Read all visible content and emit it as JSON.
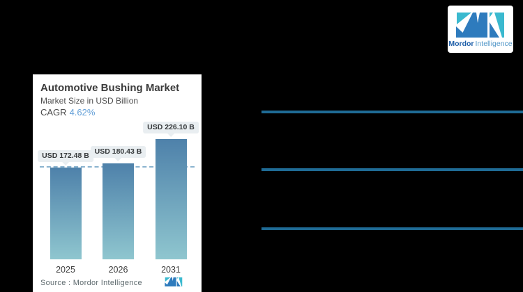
{
  "page": {
    "background": "#000000"
  },
  "brand_card": {
    "brand_bold": "Mordor",
    "brand_light": "Intelligence",
    "logo_teal": "#3ab9cf",
    "logo_blue": "#2e7bbd"
  },
  "right_panel": {
    "divider_color": "#1f6b95"
  },
  "chart_card": {
    "title": "Automotive Bushing Market",
    "subtitle": "Market Size in USD Billion",
    "cagr_label": "CAGR",
    "cagr_value": "4.62%",
    "source_text": "Source :  Mordor Intelligence",
    "accent_color": "#64a0d8"
  },
  "chart_data": {
    "type": "bar",
    "title": "Automotive Bushing Market",
    "ylabel": "Market Size in USD Billion",
    "cagr_percent": 4.62,
    "categories": [
      "2025",
      "2026",
      "2031"
    ],
    "values": [
      172.48,
      180.43,
      226.1
    ],
    "value_labels": [
      "USD 172.48 B",
      "USD 180.43 B",
      "USD 226.10 B"
    ],
    "reference_line_value": 172.48,
    "ylim": [
      0,
      240
    ],
    "grid": false,
    "legend": "none",
    "bar_gradient_top": "#4e81aa",
    "bar_gradient_bottom": "#8fc6cf",
    "reference_line_color": "#8ab3cf",
    "callout_bg": "#e9eef1"
  }
}
